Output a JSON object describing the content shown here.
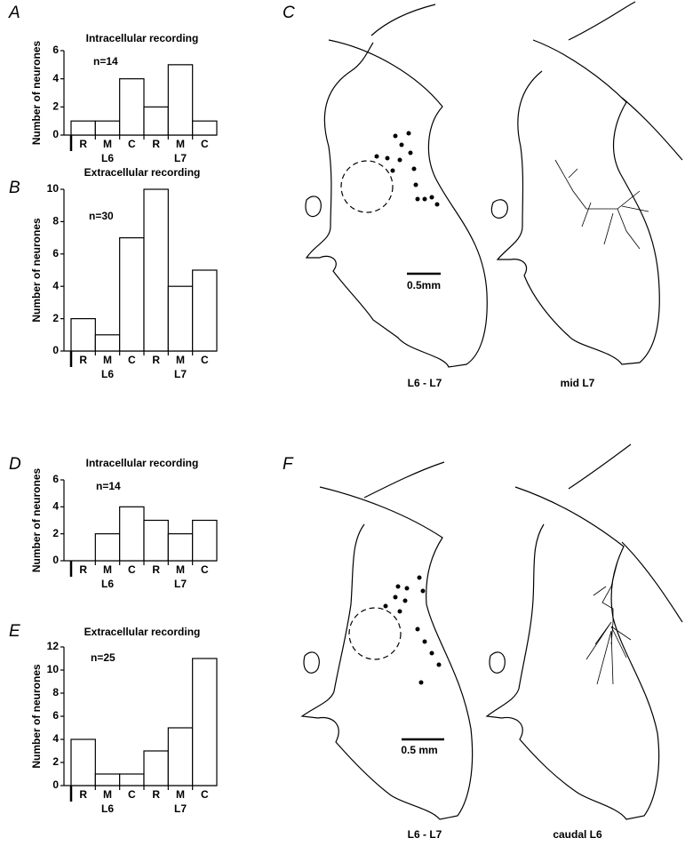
{
  "chart_data": [
    {
      "type": "bar",
      "panel": "A",
      "title": "Intracellular recording",
      "annotation": "n=14",
      "y_label": "Number of neurones",
      "categories": [
        "R",
        "M",
        "C",
        "R",
        "M",
        "C"
      ],
      "groups": [
        "L6",
        "L7"
      ],
      "values": [
        1,
        1,
        4,
        2,
        5,
        1
      ],
      "ylim": [
        0,
        6
      ],
      "yticks": [
        0,
        2,
        4,
        6
      ],
      "color": "#ffffff"
    },
    {
      "type": "bar",
      "panel": "B",
      "title": "Extracellular recording",
      "annotation": "n=30",
      "y_label": "Number of neurones",
      "categories": [
        "R",
        "M",
        "C",
        "R",
        "M",
        "C"
      ],
      "groups": [
        "L6",
        "L7"
      ],
      "values": [
        2,
        1,
        7,
        10,
        4,
        5
      ],
      "ylim": [
        0,
        10
      ],
      "yticks": [
        0,
        2,
        4,
        6,
        8,
        10
      ],
      "color": "#ffffff"
    },
    {
      "type": "bar",
      "panel": "D",
      "title": "Intracellular recording",
      "annotation": "n=14",
      "y_label": "Number of neurones",
      "categories": [
        "R",
        "M",
        "C",
        "R",
        "M",
        "C"
      ],
      "groups": [
        "L6",
        "L7"
      ],
      "values": [
        0,
        2,
        4,
        3,
        2,
        3
      ],
      "ylim": [
        0,
        6
      ],
      "yticks": [
        0,
        2,
        4,
        6
      ],
      "color": "#ffffff"
    },
    {
      "type": "bar",
      "panel": "E",
      "title": "Extracellular recording",
      "annotation": "n=25",
      "y_label": "Number of neurones",
      "categories": [
        "R",
        "M",
        "C",
        "R",
        "M",
        "C"
      ],
      "groups": [
        "L6",
        "L7"
      ],
      "values": [
        4,
        1,
        1,
        3,
        5,
        11
      ],
      "ylim": [
        0,
        12
      ],
      "yticks": [
        0,
        2,
        4,
        6,
        8,
        10,
        12
      ],
      "color": "#ffffff"
    }
  ],
  "drawings": [
    {
      "panel": "C",
      "scale": "0.5mm",
      "left_label": "L6 - L7",
      "right_label": "mid L7"
    },
    {
      "panel": "F",
      "scale": "0.5 mm",
      "left_label": "L6 - L7",
      "right_label": "caudal L6"
    }
  ]
}
